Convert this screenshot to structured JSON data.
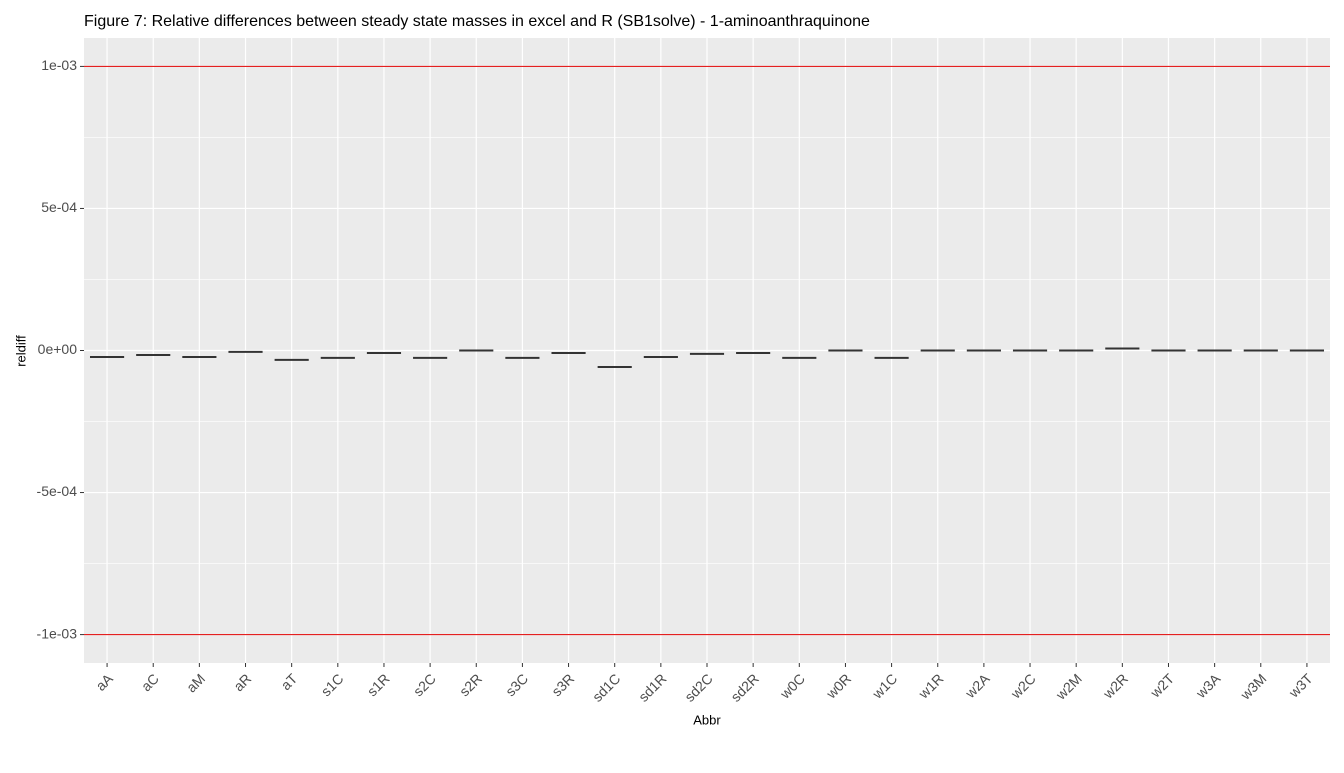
{
  "chart_data": {
    "type": "crossbar",
    "title": "Figure 7: Relative differences between steady state masses in excel and R (SB1solve) - 1-aminoanthraquinone",
    "x_label": "Abbr",
    "y_label": "reldiff",
    "categories": [
      "aA",
      "aC",
      "aM",
      "aR",
      "aT",
      "s1C",
      "s1R",
      "s2C",
      "s2R",
      "s3C",
      "s3R",
      "sd1C",
      "sd1R",
      "sd2C",
      "sd2R",
      "w0C",
      "w0R",
      "w1C",
      "w1R",
      "w2A",
      "w2C",
      "w2M",
      "w2R",
      "w2T",
      "w3A",
      "w3M",
      "w3T"
    ],
    "values": [
      -2.3e-05,
      -1.6e-05,
      -2.3e-05,
      -5e-06,
      -3.3e-05,
      -2.6e-05,
      -9e-06,
      -2.6e-05,
      0,
      -2.6e-05,
      -9e-06,
      -5.8e-05,
      -2.3e-05,
      -1.2e-05,
      -9e-06,
      -2.6e-05,
      0,
      -2.6e-05,
      0,
      0,
      0,
      0,
      7e-06,
      0,
      0,
      0,
      0
    ],
    "color": "#333333",
    "ylim": [
      -0.0011,
      0.0011
    ],
    "yticks": [
      {
        "value": 0.001,
        "label": "1e-03"
      },
      {
        "value": 0.0005,
        "label": "5e-04"
      },
      {
        "value": 0,
        "label": "0e+00"
      },
      {
        "value": -0.0005,
        "label": "-5e-04"
      },
      {
        "value": -0.001,
        "label": "-1e-03"
      }
    ],
    "hlines": [
      0.001,
      -0.001
    ],
    "hline_color": "#e00000",
    "grid": true
  }
}
